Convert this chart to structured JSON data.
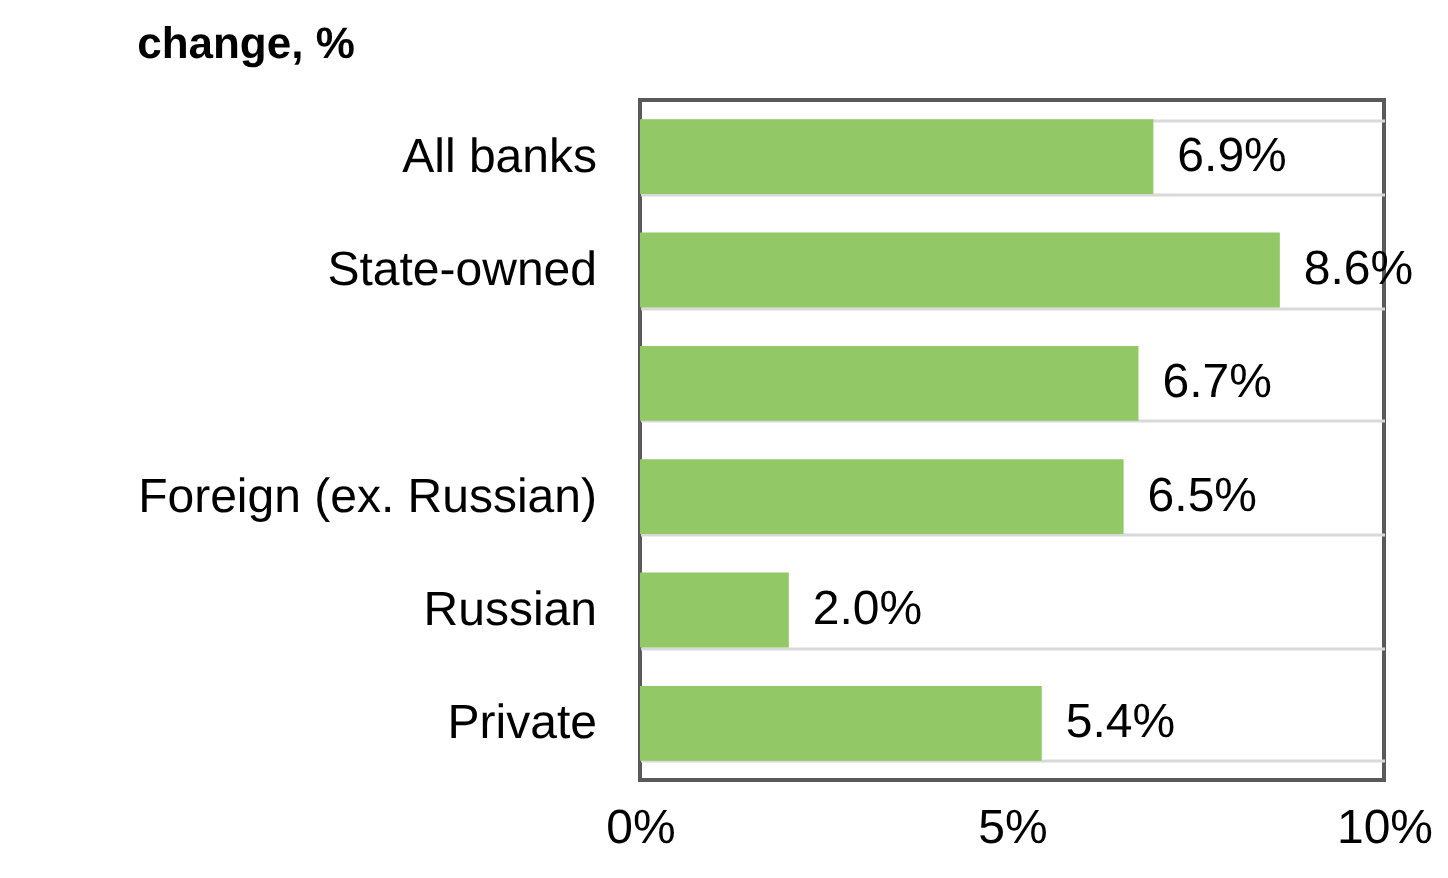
{
  "chart_data": {
    "type": "bar",
    "orientation": "horizontal",
    "title": "change, %",
    "categories": [
      "All banks",
      "State-owned",
      null,
      "Foreign (ex. Russian)",
      "Russian",
      "Private"
    ],
    "values": [
      6.9,
      8.6,
      6.7,
      6.5,
      2.0,
      5.4
    ],
    "value_labels": [
      "6.9%",
      "8.6%",
      "6.7%",
      "6.5%",
      "2.0%",
      "5.4%"
    ],
    "color": "#92c865",
    "xlim": [
      0,
      10
    ],
    "xticks": [
      {
        "value": 0,
        "label": "0%"
      },
      {
        "value": 5,
        "label": "5%"
      },
      {
        "value": 10,
        "label": "10%"
      }
    ],
    "grid": "y"
  }
}
